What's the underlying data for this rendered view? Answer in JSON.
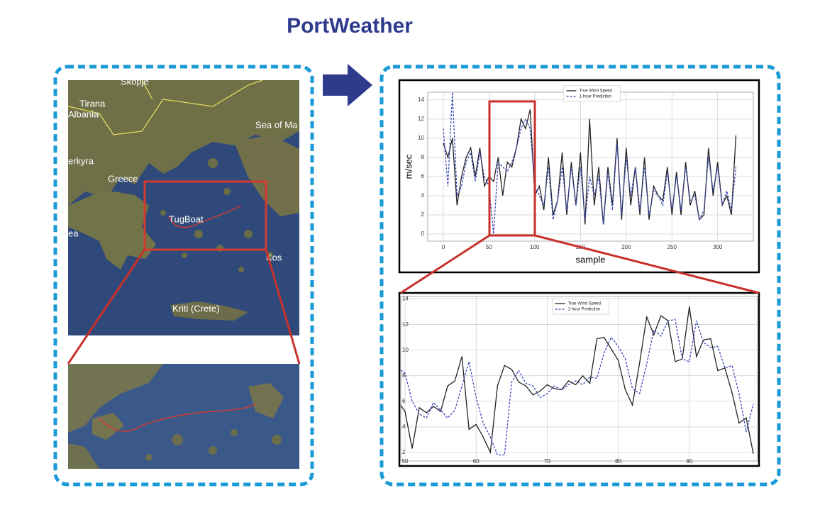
{
  "title": "PortWeather",
  "map": {
    "labels": [
      "Skopje",
      "Tirana",
      "Albania",
      "Sea of Ma",
      "erkyra",
      "Greece",
      "TugBoat",
      "ea",
      "Kos",
      "Kriti (Crete)"
    ]
  },
  "chart_data": [
    {
      "type": "line",
      "xlabel": "sample",
      "ylabel": "m/sec",
      "grid": true,
      "legend": "upper center",
      "x": [
        0,
        5,
        10,
        15,
        20,
        25,
        30,
        35,
        40,
        45,
        50,
        55,
        60,
        65,
        70,
        75,
        80,
        85,
        90,
        95,
        100,
        105,
        110,
        115,
        120,
        125,
        130,
        135,
        140,
        145,
        150,
        155,
        160,
        165,
        170,
        175,
        180,
        185,
        190,
        195,
        200,
        205,
        210,
        215,
        220,
        225,
        230,
        235,
        240,
        245,
        250,
        255,
        260,
        265,
        270,
        275,
        280,
        285,
        290,
        295,
        300,
        305,
        310,
        315,
        320
      ],
      "series": [
        {
          "name": "True Wind Speed",
          "color": "#222222",
          "line_style": "solid",
          "values": [
            9.5,
            8,
            10,
            3,
            6,
            8,
            9,
            6,
            9,
            5,
            6,
            5.5,
            8,
            4,
            7.5,
            7,
            9,
            12,
            11,
            13,
            4,
            5,
            2.5,
            8,
            2,
            3.5,
            8.5,
            2,
            7.5,
            3,
            8.5,
            1,
            12,
            3,
            7,
            1,
            7,
            3,
            10,
            1.5,
            9,
            3,
            7,
            2,
            8,
            1.5,
            5,
            4,
            3.5,
            7,
            2,
            6.5,
            2,
            7.5,
            3,
            4.5,
            1.5,
            2,
            9,
            4,
            7.5,
            3,
            4,
            2,
            10.3
          ]
        },
        {
          "name": "1-hour Prediction",
          "color": "#3a45b5",
          "line_style": "dashed",
          "values": [
            11,
            5,
            14.8,
            4,
            5,
            7.5,
            8.5,
            5.5,
            8.5,
            6,
            5,
            0,
            7.5,
            7,
            6.5,
            7.5,
            9,
            11,
            12,
            11,
            5,
            4,
            3,
            7,
            1.5,
            3.5,
            7,
            2.5,
            7,
            3,
            7,
            1.5,
            6,
            4,
            6,
            1,
            6.5,
            2.5,
            9.5,
            2,
            8,
            4,
            7,
            2.5,
            7,
            2,
            4.5,
            4,
            3,
            6.5,
            2.5,
            6,
            2.5,
            7,
            3.5,
            4,
            1.5,
            2.5,
            8,
            4.5,
            7,
            3,
            4.5,
            2.5,
            7
          ]
        }
      ],
      "xlim": [
        -17,
        339
      ],
      "ylim": [
        -0.74,
        14.8
      ],
      "xticks": [
        0,
        50,
        100,
        150,
        200,
        250,
        300
      ],
      "yticks": [
        0,
        2,
        4,
        6,
        8,
        10,
        12,
        14
      ]
    },
    {
      "type": "line",
      "grid": true,
      "legend": "upper center",
      "x": [
        49,
        50,
        51,
        52,
        53,
        54,
        55,
        56,
        57,
        58,
        59,
        60,
        61,
        62,
        63,
        64,
        65,
        66,
        67,
        68,
        69,
        70,
        71,
        72,
        73,
        74,
        75,
        76,
        77,
        78,
        79,
        80,
        81,
        82,
        83,
        84,
        85,
        86,
        87,
        88,
        89,
        90,
        91,
        92,
        93,
        94,
        95,
        96,
        97,
        98,
        99
      ],
      "series": [
        {
          "name": "True Wind Speed",
          "color": "#222222",
          "line_style": "solid",
          "values": [
            6,
            5.2,
            2.3,
            5.5,
            5.1,
            5.6,
            5.2,
            7.2,
            7.6,
            9.5,
            3.8,
            4.2,
            3.2,
            2,
            7.2,
            8.8,
            8.5,
            7.5,
            7.2,
            6.5,
            6.8,
            7.3,
            7.0,
            6.9,
            7.6,
            7.3,
            8.0,
            7.4,
            10.9,
            11.0,
            10.1,
            9.2,
            6.9,
            5.7,
            9.0,
            12.6,
            11.2,
            12.7,
            12.3,
            9.1,
            9.3,
            13.4,
            9.5,
            10.8,
            10.9,
            8.4,
            8.6,
            6.7,
            4.3,
            4.7,
            1.9
          ]
        },
        {
          "name": "1-hour Prediction",
          "color": "#3a45b5",
          "line_style": "dashed",
          "values": [
            8.6,
            8.2,
            6.0,
            5.0,
            4.7,
            5.9,
            5.3,
            4.7,
            5.3,
            7.2,
            9.1,
            6.3,
            4.3,
            3.2,
            1.8,
            1.8,
            7.5,
            8.4,
            7.4,
            7.2,
            6.3,
            6.6,
            7.2,
            6.9,
            7.3,
            7.6,
            7.3,
            7.9,
            7.8,
            9.8,
            11.0,
            10.3,
            9.3,
            7.0,
            6.6,
            8.9,
            11.6,
            11.1,
            12.3,
            12.4,
            9.3,
            9.1,
            12.3,
            10.6,
            10.2,
            10.3,
            8.6,
            8.8,
            6.6,
            3.6,
            5.8
          ]
        }
      ],
      "xlim": [
        49.4,
        99.6
      ],
      "ylim": [
        1.33,
        14.2
      ],
      "xticks": [
        50,
        60,
        70,
        80,
        90
      ],
      "yticks": [
        2,
        4,
        6,
        8,
        10,
        12,
        14
      ]
    }
  ]
}
